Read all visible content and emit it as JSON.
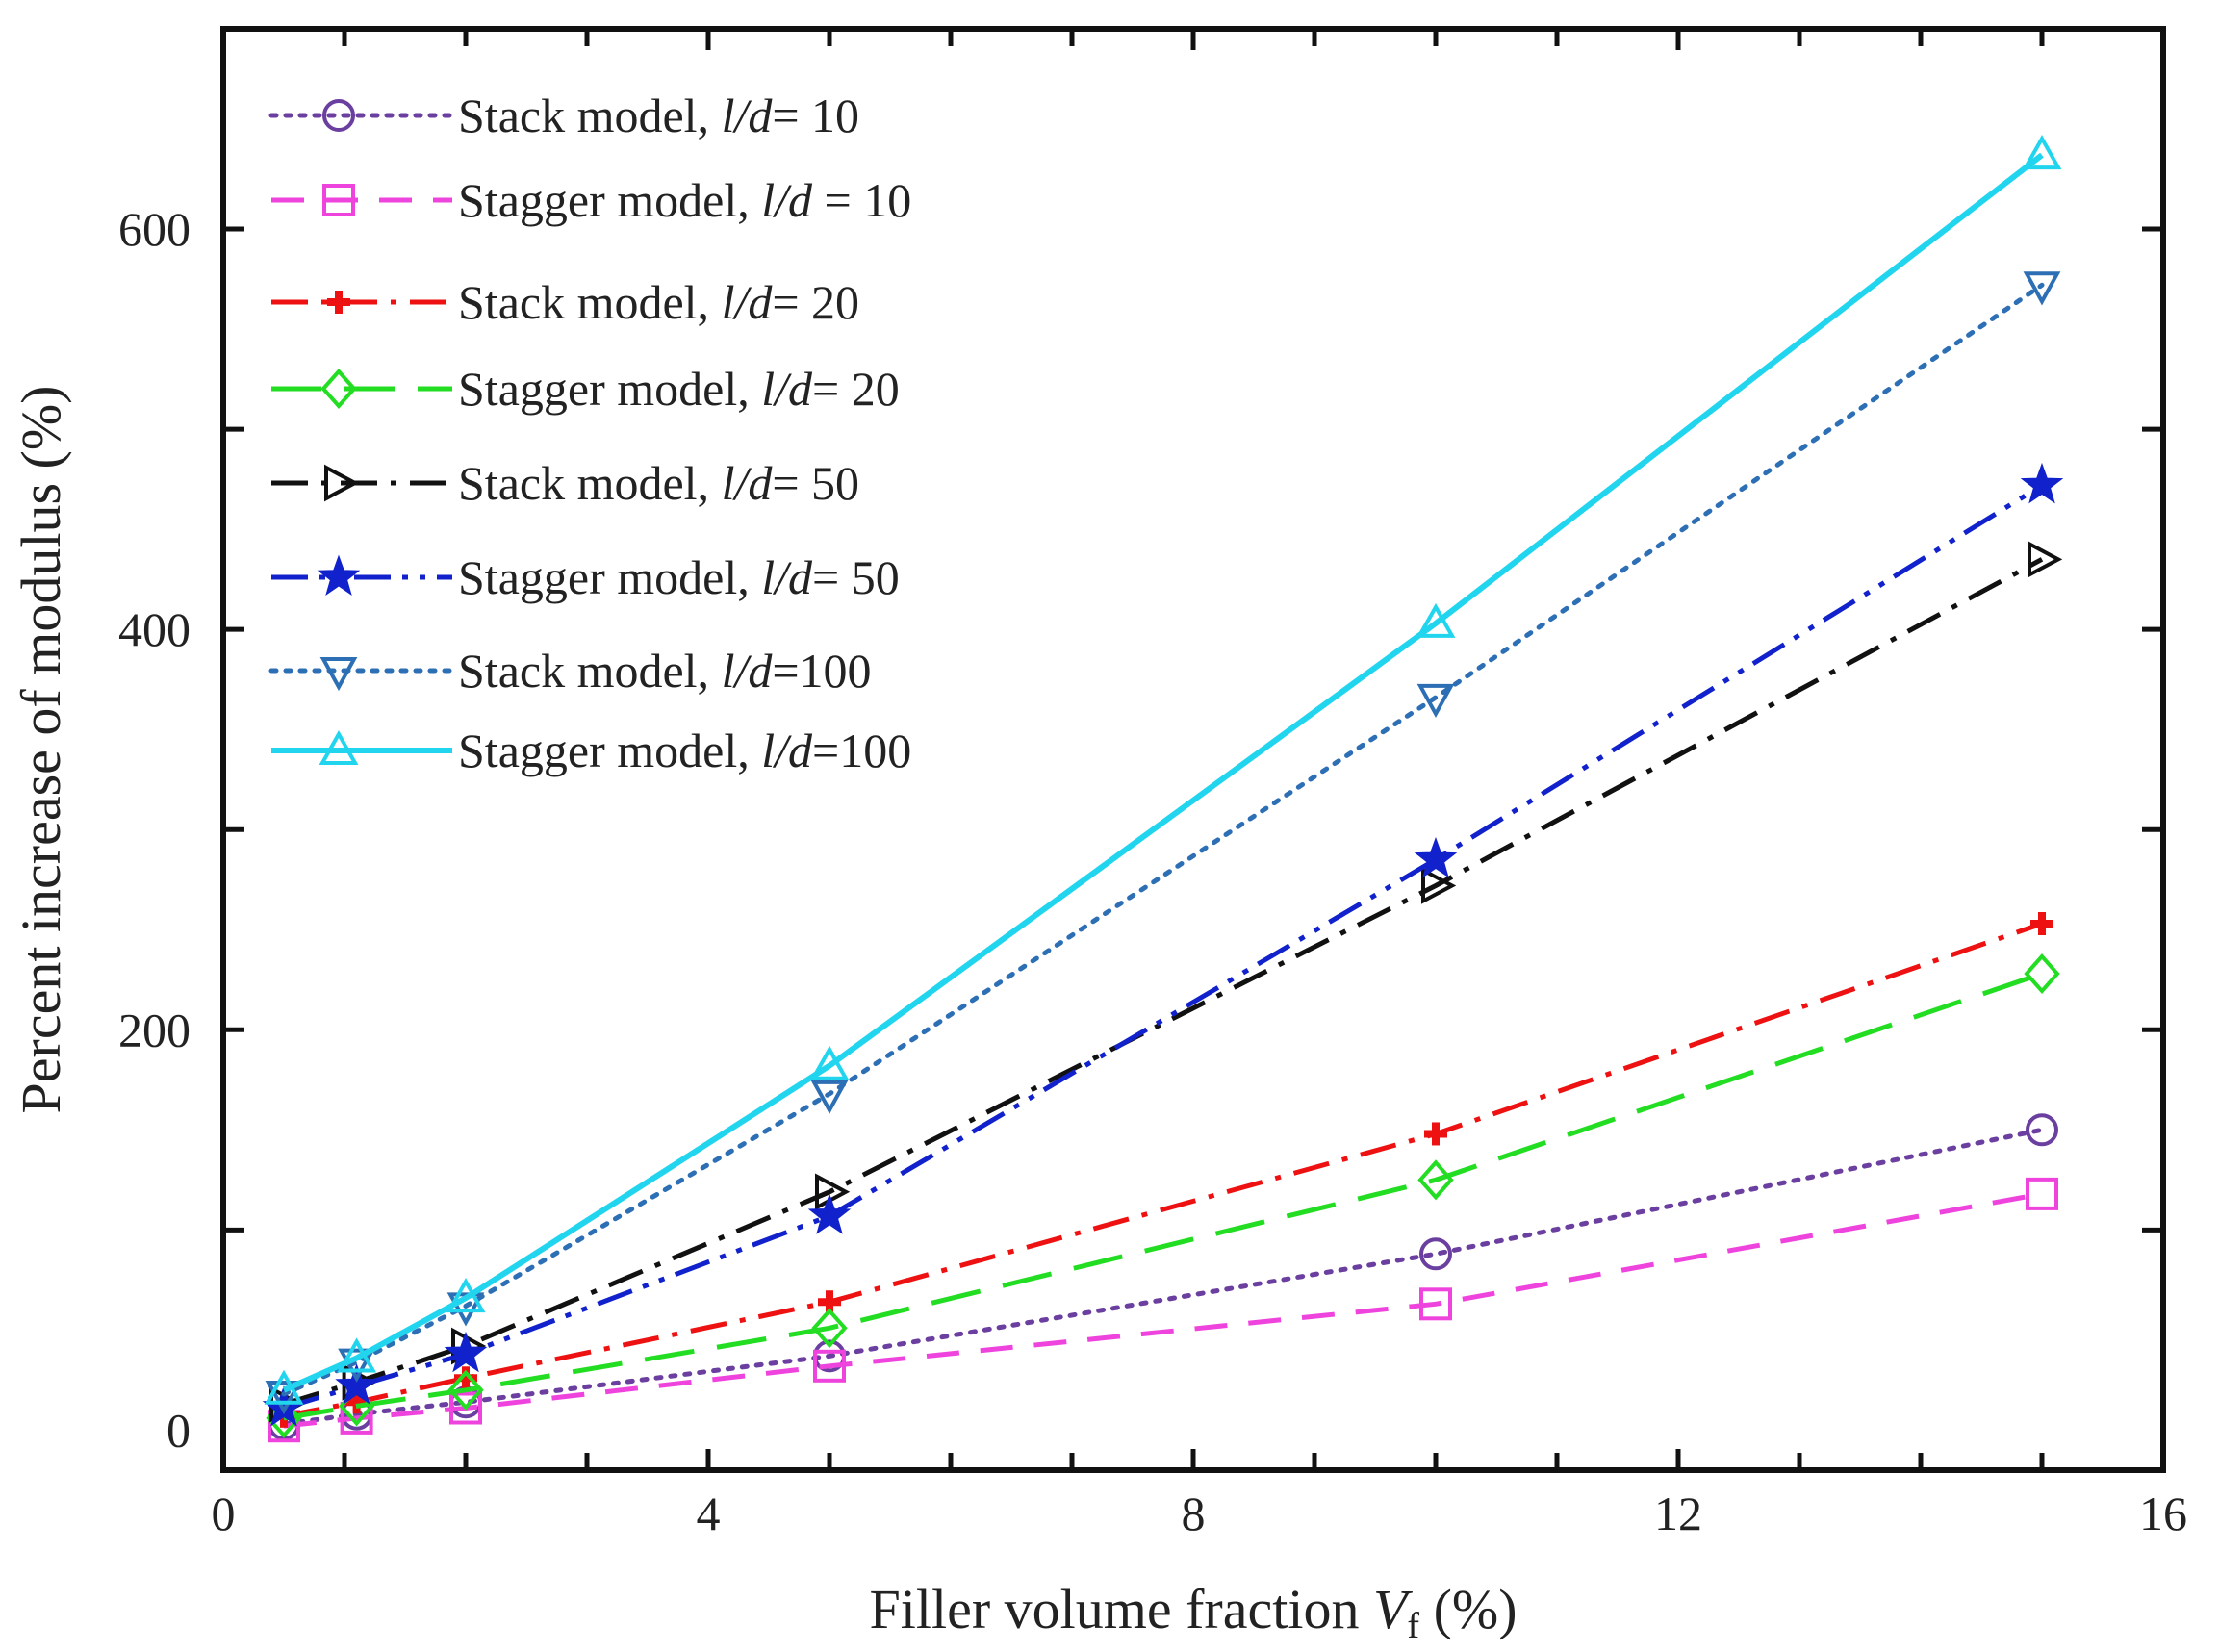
{
  "chart_data": {
    "type": "line",
    "title": "",
    "xlabel": {
      "prefix": "Filler volume fraction ",
      "var": "V",
      "sub": "f",
      "suffix": " (%)"
    },
    "ylabel": "Percent increase of modulus (%)",
    "xlim": [
      0,
      16
    ],
    "ylim": [
      -20,
      700
    ],
    "xticks": [
      0,
      4,
      8,
      12,
      16
    ],
    "xtick_labels": [
      "0",
      "4",
      "8",
      "12",
      "16"
    ],
    "yticks": [
      0,
      200,
      400,
      600
    ],
    "ytick_labels": [
      "0",
      "200",
      "400",
      "600"
    ],
    "x": [
      0.5,
      1.1,
      2,
      5,
      10,
      15
    ],
    "grid": false,
    "legend_position": "top-left",
    "series": [
      {
        "name": "Stack model, l/d= 10",
        "base": "Stack model, ",
        "ld": "= 10",
        "color": "#6b3fa0",
        "dash": "dot",
        "marker": "circle",
        "values": [
          3,
          8,
          14,
          37,
          88,
          150
        ]
      },
      {
        "name": "Stagger model, l/d = 10",
        "base": "Stagger model, ",
        "ld": " = 10",
        "color": "#ee44dd",
        "dash": "dash",
        "marker": "square",
        "values": [
          2,
          6,
          11,
          32,
          63,
          118
        ]
      },
      {
        "name": "Stack model, l/d= 20",
        "base": "Stack model, ",
        "ld": "= 20",
        "color": "#ee1111",
        "dash": "dashdot",
        "marker": "plus",
        "values": [
          7,
          14,
          26,
          64,
          148,
          253
        ]
      },
      {
        "name": "Stagger model, l/d= 20",
        "base": "Stagger model, ",
        "ld": "= 20",
        "color": "#22dd22",
        "dash": "longdash",
        "marker": "diamond",
        "values": [
          6,
          12,
          20,
          51,
          125,
          228
        ]
      },
      {
        "name": "Stack model, l/d= 50",
        "base": "Stack model, ",
        "ld": "= 50",
        "color": "#111111",
        "dash": "dashdot",
        "marker": "triangle-right",
        "values": [
          13,
          24,
          42,
          119,
          272,
          435
        ]
      },
      {
        "name": "Stagger model, l/d= 50",
        "base": "Stagger model, ",
        "ld": "= 50",
        "color": "#1122cc",
        "dash": "dashdotdot",
        "marker": "star",
        "values": [
          11,
          22,
          38,
          107,
          285,
          472
        ]
      },
      {
        "name": "Stack model, l/d=100",
        "base": "Stack model, ",
        "ld": "=100",
        "color": "#2d6fb5",
        "dash": "dot",
        "marker": "triangle-down",
        "values": [
          18,
          34,
          62,
          168,
          366,
          572
        ]
      },
      {
        "name": "Stagger model, l/d=100",
        "base": "Stagger model, ",
        "ld": "=100",
        "color": "#22d5ee",
        "dash": "solid",
        "marker": "triangle-up",
        "values": [
          20,
          36,
          66,
          182,
          403,
          637
        ]
      }
    ]
  }
}
